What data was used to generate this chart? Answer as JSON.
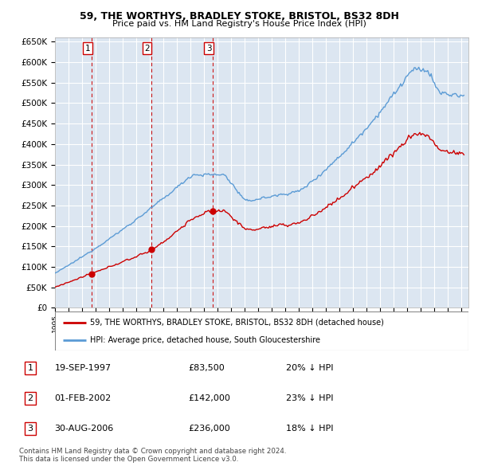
{
  "title1": "59, THE WORTHYS, BRADLEY STOKE, BRISTOL, BS32 8DH",
  "title2": "Price paid vs. HM Land Registry's House Price Index (HPI)",
  "legend_line1": "59, THE WORTHYS, BRADLEY STOKE, BRISTOL, BS32 8DH (detached house)",
  "legend_line2": "HPI: Average price, detached house, South Gloucestershire",
  "sales": [
    {
      "label": 1,
      "date_yr": 1997.72,
      "price": 83500
    },
    {
      "label": 2,
      "date_yr": 2002.09,
      "price": 142000
    },
    {
      "label": 3,
      "date_yr": 2006.66,
      "price": 236000
    }
  ],
  "table_rows": [
    {
      "num": "1",
      "date": "19-SEP-1997",
      "price": "£83,500",
      "pct": "20% ↓ HPI"
    },
    {
      "num": "2",
      "date": "01-FEB-2002",
      "price": "£142,000",
      "pct": "23% ↓ HPI"
    },
    {
      "num": "3",
      "date": "30-AUG-2006",
      "price": "£236,000",
      "pct": "18% ↓ HPI"
    }
  ],
  "footer": "Contains HM Land Registry data © Crown copyright and database right 2024.\nThis data is licensed under the Open Government Licence v3.0.",
  "red_color": "#cc0000",
  "blue_color": "#5b9bd5",
  "dashed_color": "#cc0000",
  "bg_color": "#dce6f1",
  "grid_color": "#ffffff",
  "ylim": [
    0,
    660000
  ],
  "yticks": [
    0,
    50000,
    100000,
    150000,
    200000,
    250000,
    300000,
    350000,
    400000,
    450000,
    500000,
    550000,
    600000,
    650000
  ],
  "xlim_start": 1995.0,
  "xlim_end": 2025.5
}
